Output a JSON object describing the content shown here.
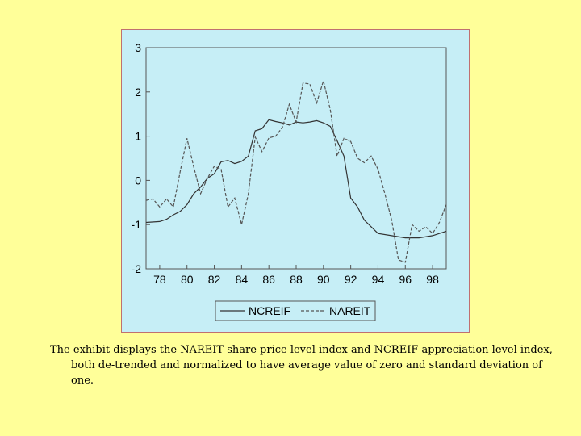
{
  "caption": "The exhibit displays the NAREIT share price level index and NCREIF appreciation level index, both de-trended and normalized to have average value of zero and standard deviation of one.",
  "chart_data": {
    "type": "line",
    "title": "",
    "xlabel": "",
    "ylabel": "",
    "xlim": [
      77.0,
      99.0
    ],
    "ylim": [
      -2,
      3
    ],
    "x_ticks": [
      78,
      80,
      82,
      84,
      86,
      88,
      90,
      92,
      94,
      96,
      98
    ],
    "x_tick_labels": [
      "78",
      "80",
      "82",
      "84",
      "86",
      "88",
      "90",
      "92",
      "94",
      "96",
      "98"
    ],
    "y_ticks": [
      -2,
      -1,
      0,
      1,
      2,
      3
    ],
    "y_tick_labels": [
      "-2",
      "-1",
      "0",
      "1",
      "2",
      "3"
    ],
    "grid": false,
    "legend_position": "bottom-center",
    "series": [
      {
        "name": "NCREIF",
        "style": "solid",
        "color": "#333333",
        "points": [
          [
            77.0,
            -0.95
          ],
          [
            78.0,
            -0.93
          ],
          [
            78.5,
            -0.88
          ],
          [
            79.0,
            -0.78
          ],
          [
            79.5,
            -0.7
          ],
          [
            80.0,
            -0.55
          ],
          [
            80.5,
            -0.3
          ],
          [
            81.0,
            -0.15
          ],
          [
            81.5,
            0.05
          ],
          [
            82.0,
            0.15
          ],
          [
            82.5,
            0.42
          ],
          [
            83.0,
            0.45
          ],
          [
            83.5,
            0.38
          ],
          [
            84.0,
            0.43
          ],
          [
            84.5,
            0.55
          ],
          [
            85.0,
            1.12
          ],
          [
            85.5,
            1.17
          ],
          [
            86.0,
            1.37
          ],
          [
            86.5,
            1.33
          ],
          [
            87.0,
            1.3
          ],
          [
            87.5,
            1.25
          ],
          [
            88.0,
            1.32
          ],
          [
            88.5,
            1.3
          ],
          [
            89.0,
            1.32
          ],
          [
            89.5,
            1.35
          ],
          [
            90.0,
            1.3
          ],
          [
            90.5,
            1.22
          ],
          [
            91.0,
            0.9
          ],
          [
            91.5,
            0.55
          ],
          [
            92.0,
            -0.4
          ],
          [
            92.5,
            -0.6
          ],
          [
            93.0,
            -0.9
          ],
          [
            93.5,
            -1.05
          ],
          [
            94.0,
            -1.2
          ],
          [
            95.0,
            -1.25
          ],
          [
            96.0,
            -1.3
          ],
          [
            97.0,
            -1.3
          ],
          [
            98.0,
            -1.25
          ],
          [
            98.5,
            -1.2
          ],
          [
            99.0,
            -1.15
          ]
        ]
      },
      {
        "name": "NAREIT",
        "style": "dashed",
        "color": "#555555",
        "points": [
          [
            77.0,
            -0.45
          ],
          [
            77.5,
            -0.42
          ],
          [
            78.0,
            -0.6
          ],
          [
            78.5,
            -0.42
          ],
          [
            79.0,
            -0.6
          ],
          [
            79.5,
            0.2
          ],
          [
            80.0,
            0.95
          ],
          [
            80.5,
            0.3
          ],
          [
            81.0,
            -0.3
          ],
          [
            81.5,
            0.05
          ],
          [
            82.0,
            0.32
          ],
          [
            82.5,
            0.25
          ],
          [
            83.0,
            -0.6
          ],
          [
            83.5,
            -0.4
          ],
          [
            84.0,
            -1.0
          ],
          [
            84.5,
            -0.3
          ],
          [
            85.0,
            0.98
          ],
          [
            85.5,
            0.65
          ],
          [
            86.0,
            0.96
          ],
          [
            86.5,
            1.0
          ],
          [
            87.0,
            1.2
          ],
          [
            87.5,
            1.72
          ],
          [
            88.0,
            1.32
          ],
          [
            88.5,
            2.2
          ],
          [
            89.0,
            2.18
          ],
          [
            89.5,
            1.75
          ],
          [
            90.0,
            2.25
          ],
          [
            90.5,
            1.6
          ],
          [
            91.0,
            0.55
          ],
          [
            91.5,
            0.95
          ],
          [
            92.0,
            0.88
          ],
          [
            92.5,
            0.5
          ],
          [
            93.0,
            0.4
          ],
          [
            93.5,
            0.55
          ],
          [
            94.0,
            0.25
          ],
          [
            94.5,
            -0.3
          ],
          [
            95.0,
            -0.9
          ],
          [
            95.5,
            -1.8
          ],
          [
            96.0,
            -1.85
          ],
          [
            96.5,
            -1.0
          ],
          [
            97.0,
            -1.15
          ],
          [
            97.5,
            -1.05
          ],
          [
            98.0,
            -1.2
          ],
          [
            98.5,
            -0.95
          ],
          [
            99.0,
            -0.55
          ]
        ]
      }
    ]
  }
}
